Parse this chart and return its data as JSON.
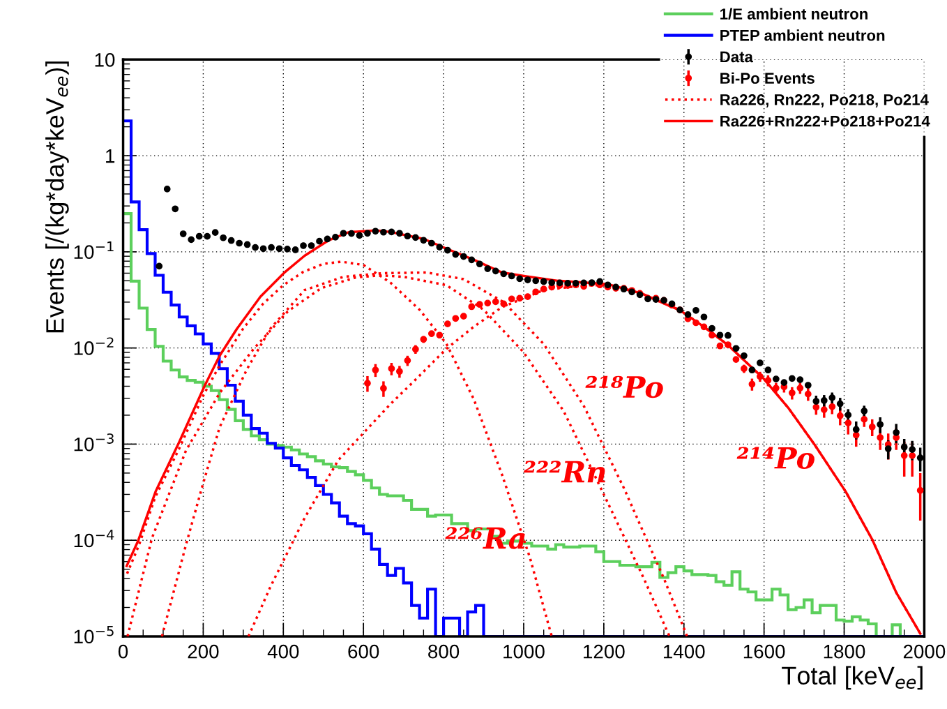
{
  "chart_data": {
    "type": "histogram",
    "xlabel": "Total [keV$_{ee}$]",
    "ylabel": "Events [/(kg*day*keV$_{ee}$)]",
    "xlim": [
      0,
      2000
    ],
    "ylim": [
      1e-05,
      10
    ],
    "xticks": [
      0,
      200,
      400,
      600,
      800,
      1000,
      1200,
      1400,
      1600,
      1800,
      2000
    ],
    "yticks": [
      {
        "value": 1e-05,
        "label": "10$^{−5}$"
      },
      {
        "value": 0.0001,
        "label": "10$^{−4}$"
      },
      {
        "value": 0.001,
        "label": "10$^{−3}$"
      },
      {
        "value": 0.01,
        "label": "10$^{−2}$"
      },
      {
        "value": 0.1,
        "label": "10$^{−1}$"
      },
      {
        "value": 1,
        "label": "1"
      },
      {
        "value": 10,
        "label": "10"
      }
    ],
    "log": "y",
    "grid": true,
    "legend": "top right",
    "bins": [
      0,
      20,
      40,
      60,
      80,
      100,
      120,
      140,
      160,
      180,
      200,
      220,
      240,
      260,
      280,
      300,
      320,
      340,
      360,
      380,
      400,
      420,
      440,
      460,
      480,
      500,
      520,
      540,
      560,
      580,
      600,
      620,
      640,
      660,
      680,
      700,
      720,
      740,
      760,
      780,
      800,
      820,
      840,
      860,
      880,
      900,
      920,
      940,
      960,
      980,
      1000,
      1020,
      1040,
      1060,
      1080,
      1100,
      1120,
      1140,
      1160,
      1180,
      1200,
      1220,
      1240,
      1260,
      1280,
      1300,
      1320,
      1340,
      1360,
      1380,
      1400,
      1420,
      1440,
      1460,
      1480,
      1500,
      1520,
      1540,
      1560,
      1580,
      1600,
      1620,
      1640,
      1660,
      1680,
      1700,
      1720,
      1740,
      1760,
      1780,
      1800,
      1820,
      1840,
      1860,
      1880,
      1900,
      1920,
      1940,
      1960,
      1980,
      2000
    ],
    "annotations": [
      "²²⁶Ra",
      "²²²Rn",
      "²¹⁸Po",
      "²¹⁴Po"
    ],
    "series": [
      {
        "name": "1/E ambient neutron",
        "color": "#5ccf5c",
        "values": [
          0.25,
          0.0495,
          0.026,
          0.0156,
          0.0104,
          0.0073,
          0.0059,
          0.005,
          0.0046,
          0.0044,
          0.004,
          0.0036,
          0.0029,
          0.0023,
          0.00175,
          0.00142,
          0.00122,
          0.00111,
          0.001,
          0.00097,
          0.00093,
          0.00087,
          0.00079,
          0.00074,
          0.00067,
          0.00062,
          0.00058,
          0.00057,
          0.00052,
          0.00048,
          0.00042,
          0.00035,
          0.0003,
          0.00029,
          0.00029,
          0.00026,
          0.00021,
          0.00021,
          0.000178,
          0.000183,
          0.000183,
          0.000149,
          0.000149,
          0.000126,
          0.000131,
          0.000131,
          0.00011,
          9.3e-05,
          9.8e-05,
          9.8e-05,
          9.3e-05,
          8.7e-05,
          8.7e-05,
          8.1e-05,
          9e-05,
          8.5e-05,
          8.5e-05,
          8.7e-05,
          8.7e-05,
          7.6e-05,
          6e-05,
          6e-05,
          5.5e-05,
          5.5e-05,
          5.3e-05,
          5.3e-05,
          5.9e-05,
          4.1e-05,
          4.6e-05,
          5.3e-05,
          4.8e-05,
          4.4e-05,
          4.4e-05,
          4.3e-05,
          3.7e-05,
          3.4e-05,
          4.7e-05,
          3.1e-05,
          2.9e-05,
          2.4e-05,
          2.4e-05,
          3.1e-05,
          2.7e-05,
          1.9e-05,
          2e-05,
          2.4e-05,
          1.76e-05,
          2.1e-05,
          2.1e-05,
          1.48e-05,
          1.44e-05,
          1.6e-05,
          1.48e-05,
          1.35e-05,
          1e-05,
          1e-05,
          1.32e-05,
          1e-05,
          1e-05,
          1e-05
        ]
      },
      {
        "name": "PTEP ambient neutron",
        "color": "#0000ff",
        "values": [
          2.3,
          0.33,
          0.17,
          0.096,
          0.057,
          0.038,
          0.028,
          0.021,
          0.017,
          0.014,
          0.011,
          0.0088,
          0.0061,
          0.0041,
          0.0028,
          0.002,
          0.00145,
          0.0013,
          0.00102,
          0.00091,
          0.00072,
          0.0006,
          0.00054,
          0.00045,
          0.00037,
          0.0003,
          0.000245,
          0.000178,
          0.000149,
          0.000141,
          0.000117,
          8.1e-05,
          5.6e-05,
          4.3e-05,
          5.1e-05,
          3.6e-05,
          2.1e-05,
          1.55e-05,
          3.1e-05,
          1e-05,
          1.55e-05,
          1.55e-05,
          1e-05,
          1.8e-05,
          2.1e-05,
          1e-05,
          1e-05,
          1e-05,
          1e-05,
          1e-05,
          1e-05,
          1e-05,
          1e-05,
          1e-05,
          1e-05,
          1e-05,
          1e-05,
          1e-05,
          1e-05,
          1e-05,
          1e-05,
          1e-05,
          1e-05,
          1e-05,
          1e-05,
          1e-05,
          1e-05,
          1e-05,
          1e-05,
          1e-05,
          1e-05,
          1e-05,
          1e-05,
          1e-05,
          1e-05,
          1e-05,
          1e-05,
          1e-05,
          1e-05,
          1e-05,
          1e-05,
          1e-05,
          1e-05,
          1e-05,
          1e-05,
          1e-05,
          1e-05,
          1e-05,
          1e-05,
          1e-05,
          1e-05,
          1e-05,
          1e-05,
          1e-05,
          1e-05,
          1e-05,
          1e-05,
          1e-05,
          1e-05,
          1e-05
        ]
      },
      {
        "type": "scatter",
        "name": "Data",
        "color": "#000000",
        "marker": "circle",
        "x": [
          90,
          110,
          130,
          150,
          170,
          190,
          210,
          230,
          250,
          270,
          290,
          310,
          330,
          350,
          370,
          390,
          410,
          430,
          450,
          470,
          490,
          510,
          530,
          550,
          570,
          590,
          610,
          630,
          650,
          670,
          690,
          710,
          730,
          750,
          770,
          790,
          810,
          830,
          850,
          870,
          890,
          910,
          930,
          950,
          970,
          990,
          1010,
          1030,
          1050,
          1070,
          1090,
          1110,
          1130,
          1150,
          1170,
          1190,
          1210,
          1230,
          1250,
          1270,
          1290,
          1310,
          1330,
          1350,
          1370,
          1390,
          1410,
          1430,
          1450,
          1470,
          1490,
          1510,
          1530,
          1550,
          1570,
          1590,
          1610,
          1630,
          1650,
          1670,
          1690,
          1710,
          1730,
          1750,
          1770,
          1790,
          1810,
          1830,
          1850,
          1870,
          1890,
          1910,
          1930,
          1950,
          1970,
          1990
        ],
        "values": [
          0.071,
          0.45,
          0.28,
          0.154,
          0.134,
          0.145,
          0.145,
          0.159,
          0.14,
          0.131,
          0.123,
          0.119,
          0.111,
          0.108,
          0.111,
          0.108,
          0.107,
          0.105,
          0.116,
          0.116,
          0.129,
          0.136,
          0.142,
          0.156,
          0.155,
          0.148,
          0.156,
          0.164,
          0.16,
          0.161,
          0.156,
          0.146,
          0.141,
          0.132,
          0.123,
          0.112,
          0.104,
          0.094,
          0.0895,
          0.0826,
          0.0748,
          0.0667,
          0.0632,
          0.0591,
          0.0561,
          0.0525,
          0.0511,
          0.05,
          0.0491,
          0.0478,
          0.0475,
          0.0471,
          0.0471,
          0.0475,
          0.0478,
          0.0491,
          0.0453,
          0.043,
          0.041,
          0.0383,
          0.0358,
          0.0324,
          0.032,
          0.0313,
          0.0288,
          0.0249,
          0.0222,
          0.0246,
          0.021,
          0.016,
          0.0136,
          0.0135,
          0.0099,
          0.0083,
          0.0059,
          0.007,
          0.0059,
          0.00476,
          0.00437,
          0.00482,
          0.00468,
          0.0041,
          0.00279,
          0.00284,
          0.00304,
          0.00263,
          0.00201,
          0.00142,
          0.00221,
          null,
          0.0016,
          0.000895,
          0.00132,
          0.00093,
          0.00088,
          0.00072
        ],
        "errors": [
          null,
          null,
          null,
          null,
          null,
          null,
          null,
          null,
          null,
          null,
          null,
          null,
          null,
          null,
          null,
          null,
          null,
          null,
          null,
          null,
          null,
          null,
          null,
          null,
          null,
          null,
          null,
          null,
          null,
          null,
          null,
          null,
          null,
          null,
          null,
          null,
          null,
          null,
          null,
          null,
          null,
          null,
          null,
          null,
          null,
          null,
          null,
          null,
          null,
          null,
          null,
          null,
          null,
          null,
          null,
          null,
          null,
          null,
          null,
          null,
          null,
          null,
          null,
          null,
          null,
          null,
          null,
          null,
          null,
          null,
          null,
          null,
          null,
          null,
          null,
          null,
          null,
          null,
          null,
          null,
          null,
          null,
          0.0004,
          0.0004,
          0.0004,
          0.0004,
          0.0003,
          0.0003,
          0.0003,
          null,
          0.0003,
          0.0002,
          0.0003,
          0.0002,
          0.0002,
          0.0002
        ]
      },
      {
        "type": "scatter",
        "name": "Bi-Po Events",
        "color": "#ff0000",
        "marker": "circle",
        "x": [
          610,
          630,
          650,
          670,
          690,
          710,
          730,
          750,
          770,
          790,
          810,
          830,
          850,
          870,
          890,
          910,
          930,
          950,
          970,
          990,
          1010,
          1030,
          1050,
          1070,
          1090,
          1110,
          1130,
          1150,
          1170,
          1190,
          1210,
          1230,
          1250,
          1270,
          1290,
          1310,
          1330,
          1350,
          1370,
          1390,
          1410,
          1430,
          1450,
          1470,
          1490,
          1510,
          1530,
          1550,
          1570,
          1590,
          1610,
          1630,
          1650,
          1670,
          1690,
          1710,
          1730,
          1750,
          1770,
          1790,
          1810,
          1830,
          1850,
          1870,
          1890,
          1910,
          1930,
          1950,
          1970,
          1990
        ],
        "values": [
          0.0043,
          0.0059,
          0.0038,
          0.0061,
          0.0057,
          0.0074,
          0.0097,
          0.0123,
          0.0141,
          0.0136,
          0.0178,
          0.0203,
          0.0214,
          0.0269,
          0.0284,
          0.0293,
          0.0303,
          0.0288,
          0.0324,
          0.0329,
          0.0342,
          0.0383,
          0.041,
          0.043,
          0.0447,
          0.0447,
          0.0453,
          0.0438,
          0.0469,
          0.0453,
          0.043,
          0.0418,
          0.0418,
          0.0396,
          0.037,
          0.0329,
          0.0329,
          0.0313,
          0.0279,
          0.0249,
          0.0201,
          0.0183,
          0.0166,
          0.0136,
          0.0105,
          0.0108,
          0.0076,
          0.0061,
          0.0042,
          0.00505,
          0.0046,
          0.00383,
          0.00394,
          0.00341,
          0.00383,
          0.00332,
          0.00242,
          0.00228,
          0.00245,
          0.00197,
          0.00166,
          0.00124,
          0.00181,
          0.00151,
          0.00117,
          0.00099,
          0.00117,
          0.00076,
          0.00076,
          0.00033
        ],
        "errors": [
          0.0008,
          0.0009,
          0.0007,
          0.0009,
          0.0008,
          0.0009,
          0.001,
          0.001,
          0.001,
          0.001,
          null,
          null,
          null,
          null,
          null,
          null,
          null,
          null,
          null,
          null,
          null,
          null,
          null,
          null,
          null,
          null,
          null,
          null,
          null,
          null,
          null,
          null,
          null,
          null,
          null,
          null,
          null,
          null,
          null,
          null,
          null,
          null,
          null,
          null,
          null,
          null,
          null,
          0.0006,
          0.0006,
          0.0006,
          0.0006,
          0.0005,
          0.0005,
          0.0005,
          0.0005,
          0.0005,
          0.0004,
          0.0004,
          0.0004,
          0.0004,
          0.0004,
          0.0003,
          0.0003,
          0.0003,
          0.0003,
          0.0003,
          0.0003,
          0.0003,
          0.0003,
          0.00017
        ]
      },
      {
        "type": "line",
        "name": "Ra226, Rn222, Po218, Po214",
        "color": "#ff0000",
        "line_style": "dotted",
        "x": [
          10,
          40,
          80,
          140,
          200,
          240,
          300,
          350,
          400,
          450,
          500,
          545,
          600,
          667,
          740,
          807,
          876,
          946,
          1016,
          1070
        ],
        "values": [
          4.5e-05,
          9e-05,
          0.00028,
          0.0009,
          0.0032,
          0.0065,
          0.016,
          0.029,
          0.045,
          0.062,
          0.075,
          0.079,
          0.073,
          0.048,
          0.025,
          0.0111,
          0.0029,
          0.00048,
          6.5e-05,
          1e-05
        ]
      },
      {
        "type": "line",
        "color": "#ff0000",
        "line_style": "dotted",
        "x": [
          11,
          72,
          157,
          241,
          326,
          411,
          495,
          580,
          640,
          700,
          807,
          900,
          1000,
          1100,
          1200,
          1300,
          1364
        ],
        "values": [
          1e-05,
          0.000105,
          0.00086,
          0.0034,
          0.0098,
          0.024,
          0.042,
          0.054,
          0.057,
          0.055,
          0.045,
          0.025,
          0.009,
          0.0022,
          0.0003,
          4e-05,
          1e-05
        ]
      },
      {
        "type": "line",
        "color": "#ff0000",
        "line_style": "dotted",
        "x": [
          97,
          157,
          199,
          241,
          309,
          368,
          453,
          550,
          650,
          758,
          850,
          950,
          1050,
          1150,
          1250,
          1350,
          1408
        ],
        "values": [
          1e-05,
          9e-05,
          0.00038,
          0.0015,
          0.006,
          0.016,
          0.04,
          0.055,
          0.06,
          0.061,
          0.052,
          0.03,
          0.011,
          0.0025,
          0.00035,
          4e-05,
          1e-05
        ]
      },
      {
        "type": "line",
        "color": "#ff0000",
        "line_style": "dotted",
        "x": [
          313,
          368,
          453,
          537,
          667,
          737,
          807,
          876,
          946,
          1050,
          1155,
          1211,
          1294,
          1364,
          1389,
          1450,
          1509,
          1599,
          1660,
          1726,
          1804,
          1870,
          1930,
          1990
        ],
        "values": [
          1e-05,
          3.3e-05,
          0.00017,
          0.00068,
          0.0026,
          0.005,
          0.0098,
          0.0167,
          0.0266,
          0.04,
          0.045,
          0.045,
          0.037,
          0.0274,
          0.0249,
          0.0166,
          0.0108,
          0.0048,
          0.0024,
          0.00099,
          0.00032,
          0.000102,
          2.86e-05,
          1.07e-05
        ]
      },
      {
        "type": "line",
        "name": "Ra226+Rn222+Po218+Po214",
        "color": "#ff0000",
        "line_style": "solid",
        "x": [
          9,
          38,
          81,
          140,
          203,
          241,
          284,
          343,
          402,
          453,
          512,
          563,
          631,
          667,
          751,
          807,
          876,
          946,
          1009,
          1085,
          1155,
          1211,
          1294,
          1364,
          1389,
          1450,
          1509,
          1599,
          1660,
          1726,
          1804,
          1870,
          1930,
          1990
        ],
        "values": [
          5.4e-05,
          0.0001,
          0.00032,
          0.00105,
          0.004,
          0.0083,
          0.0158,
          0.0343,
          0.0605,
          0.091,
          0.131,
          0.16,
          0.167,
          0.161,
          0.136,
          0.108,
          0.0826,
          0.061,
          0.0554,
          0.05,
          0.0478,
          0.046,
          0.037,
          0.0274,
          0.0249,
          0.0166,
          0.0108,
          0.0048,
          0.0024,
          0.00099,
          0.00032,
          0.000102,
          2.86e-05,
          1.07e-05
        ]
      }
    ]
  }
}
